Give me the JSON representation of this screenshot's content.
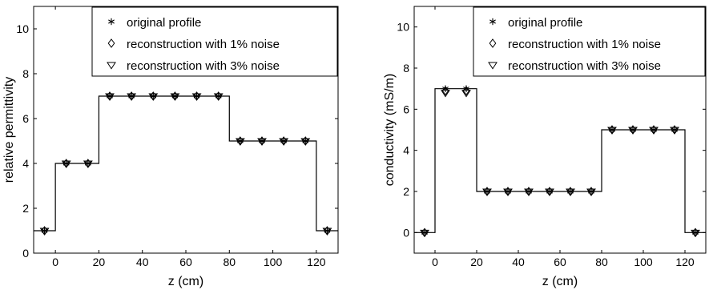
{
  "chart_data": [
    {
      "type": "line",
      "xlabel": "z (cm)",
      "ylabel": "relative permittivity",
      "xlim": [
        -10,
        130
      ],
      "ylim": [
        0,
        11
      ],
      "xticks": [
        0,
        20,
        40,
        60,
        80,
        100,
        120
      ],
      "yticks": [
        0,
        2,
        4,
        6,
        8,
        10
      ],
      "grid": false,
      "legend_position": "top-right",
      "legend": [
        "original profile",
        "reconstruction with 1% noise",
        "reconstruction with 3% noise"
      ],
      "profile_steps": [
        {
          "x": -10,
          "y": 1
        },
        {
          "x": 0,
          "y": 1
        },
        {
          "x": 0,
          "y": 4
        },
        {
          "x": 20,
          "y": 4
        },
        {
          "x": 20,
          "y": 7
        },
        {
          "x": 80,
          "y": 7
        },
        {
          "x": 80,
          "y": 5
        },
        {
          "x": 120,
          "y": 5
        },
        {
          "x": 120,
          "y": 1
        },
        {
          "x": 130,
          "y": 1
        }
      ],
      "series": [
        {
          "name": "original profile",
          "marker": "asterisk",
          "x": [
            -5,
            5,
            15,
            25,
            35,
            45,
            55,
            65,
            75,
            85,
            95,
            105,
            115,
            125
          ],
          "y": [
            1,
            4,
            4,
            7,
            7,
            7,
            7,
            7,
            7,
            5,
            5,
            5,
            5,
            1
          ]
        },
        {
          "name": "reconstruction with 1% noise",
          "marker": "diamond",
          "x": [
            -5,
            5,
            15,
            25,
            35,
            45,
            55,
            65,
            75,
            85,
            95,
            105,
            115,
            125
          ],
          "y": [
            1,
            4,
            4,
            7,
            7,
            7,
            7,
            7,
            7,
            5,
            5,
            5,
            5,
            1
          ]
        },
        {
          "name": "reconstruction with 3% noise",
          "marker": "triangle-down",
          "x": [
            -5,
            5,
            15,
            25,
            35,
            45,
            55,
            65,
            75,
            85,
            95,
            105,
            115,
            125
          ],
          "y": [
            1,
            4,
            4,
            7,
            7,
            7,
            7,
            7,
            7,
            5,
            5,
            5,
            5,
            1
          ]
        }
      ]
    },
    {
      "type": "line",
      "xlabel": "z (cm)",
      "ylabel": "conductivity  (mS/m)",
      "xlim": [
        -10,
        130
      ],
      "ylim": [
        -1,
        11
      ],
      "xticks": [
        0,
        20,
        40,
        60,
        80,
        100,
        120
      ],
      "yticks": [
        0,
        2,
        4,
        6,
        8,
        10
      ],
      "grid": false,
      "legend_position": "top-right",
      "legend": [
        "original profile",
        "reconstruction with 1% noise",
        "reconstruction with 3% noise"
      ],
      "profile_steps": [
        {
          "x": -10,
          "y": 0
        },
        {
          "x": 0,
          "y": 0
        },
        {
          "x": 0,
          "y": 7
        },
        {
          "x": 20,
          "y": 7
        },
        {
          "x": 20,
          "y": 2
        },
        {
          "x": 80,
          "y": 2
        },
        {
          "x": 80,
          "y": 5
        },
        {
          "x": 120,
          "y": 5
        },
        {
          "x": 120,
          "y": 0
        },
        {
          "x": 130,
          "y": 0
        }
      ],
      "series": [
        {
          "name": "original profile",
          "marker": "asterisk",
          "x": [
            -5,
            5,
            15,
            25,
            35,
            45,
            55,
            65,
            75,
            85,
            95,
            105,
            115,
            125
          ],
          "y": [
            0,
            7,
            7,
            2,
            2,
            2,
            2,
            2,
            2,
            5,
            5,
            5,
            5,
            0
          ]
        },
        {
          "name": "reconstruction with 1% noise",
          "marker": "diamond",
          "x": [
            -5,
            5,
            15,
            25,
            35,
            45,
            55,
            65,
            75,
            85,
            95,
            105,
            115,
            125
          ],
          "y": [
            0,
            6.9,
            6.9,
            2,
            2,
            2,
            2,
            2,
            2,
            5,
            5,
            5,
            5,
            0
          ]
        },
        {
          "name": "reconstruction with 3% noise",
          "marker": "triangle-down",
          "x": [
            -5,
            5,
            15,
            25,
            35,
            45,
            55,
            65,
            75,
            85,
            95,
            105,
            115,
            125
          ],
          "y": [
            0,
            6.8,
            6.8,
            2,
            2,
            2,
            2,
            2,
            2,
            5,
            5,
            5,
            5,
            0
          ]
        }
      ]
    }
  ]
}
